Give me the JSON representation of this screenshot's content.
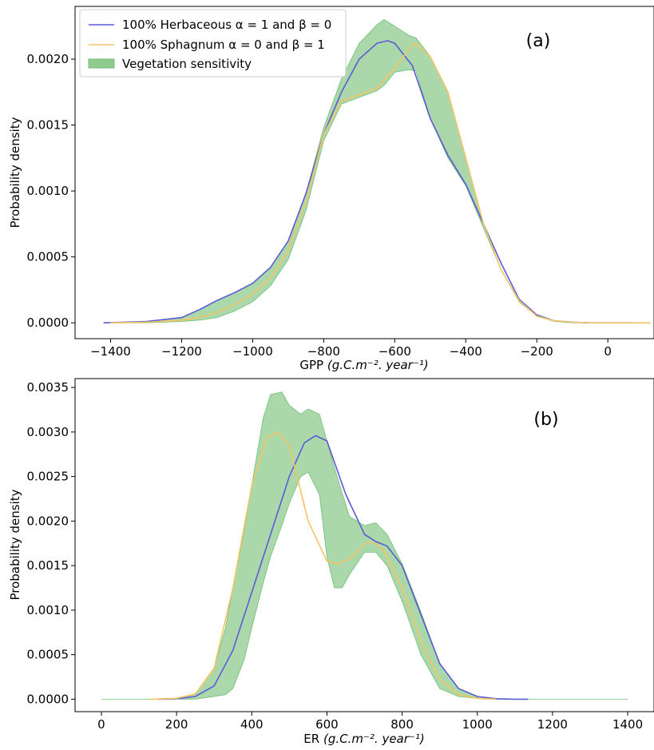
{
  "colors": {
    "herbaceous": "#5b5bd6",
    "sphagnum": "#f5c463",
    "band_fill": "#8fcb8f",
    "band_edge": "#6fbf73"
  },
  "legend": {
    "herbaceous": "100% Herbaceous α = 1 and β = 0",
    "sphagnum": "100% Sphagnum α = 0 and β = 1",
    "band": "Vegetation sensitivity",
    "placement": "top-left"
  },
  "chart_data": [
    {
      "type": "line",
      "panel_label": "(a)",
      "xlabel": "GPP",
      "xlabel_units": "(g.C.m⁻². year⁻¹)",
      "ylabel": "Probability density",
      "xlim": [
        -1500,
        130
      ],
      "ylim": [
        -0.00012,
        0.0024
      ],
      "xticks": [
        -1400,
        -1200,
        -1000,
        -800,
        -600,
        -400,
        -200,
        0
      ],
      "yticks": [
        0.0,
        0.0005,
        0.001,
        0.0015,
        0.002
      ],
      "ytick_labels": [
        "0.0000",
        "0.0005",
        "0.0010",
        "0.0015",
        "0.0020"
      ],
      "grid": false,
      "series": [
        {
          "name": "100% Herbaceous α = 1 and β = 0",
          "x": [
            -1420,
            -1300,
            -1200,
            -1150,
            -1100,
            -1050,
            -1000,
            -950,
            -900,
            -850,
            -800,
            -750,
            -700,
            -650,
            -620,
            -600,
            -550,
            -500,
            -450,
            -400,
            -350,
            -300,
            -250,
            -200,
            -150,
            -100,
            -50,
            0,
            70
          ],
          "y": [
            0.0,
            1e-05,
            4e-05,
            0.0001,
            0.00017,
            0.00023,
            0.0003,
            0.00042,
            0.00062,
            0.00098,
            0.00143,
            0.00175,
            0.002,
            0.00212,
            0.00214,
            0.00212,
            0.00195,
            0.00155,
            0.00127,
            0.00105,
            0.00075,
            0.00045,
            0.00018,
            6e-05,
            1.5e-05,
            5e-06,
            0.0,
            0.0,
            0.0
          ]
        },
        {
          "name": "100% Sphagnum α = 0 and β = 1",
          "x": [
            -1400,
            -1300,
            -1200,
            -1150,
            -1100,
            -1050,
            -1000,
            -950,
            -900,
            -850,
            -800,
            -750,
            -700,
            -650,
            -600,
            -550,
            -540,
            -500,
            -450,
            -400,
            -350,
            -300,
            -250,
            -200,
            -150,
            -100,
            -50,
            0,
            70,
            120
          ],
          "y": [
            0.0,
            5e-06,
            2e-05,
            4e-05,
            8e-05,
            0.00014,
            0.00022,
            0.00034,
            0.00055,
            0.00092,
            0.00143,
            0.00168,
            0.00173,
            0.00178,
            0.00193,
            0.00211,
            0.00212,
            0.00202,
            0.00175,
            0.00125,
            0.00075,
            0.0004,
            0.00017,
            5e-05,
            1.5e-05,
            5e-06,
            0.0,
            0.0,
            0.0,
            0.0
          ]
        }
      ],
      "band": {
        "name": "Vegetation sensitivity",
        "x": [
          -1400,
          -1300,
          -1200,
          -1150,
          -1100,
          -1050,
          -1000,
          -950,
          -900,
          -850,
          -800,
          -750,
          -700,
          -650,
          -630,
          -600,
          -560,
          -540,
          -500,
          -450,
          -400,
          -350,
          -300,
          -250,
          -200,
          -150,
          -100,
          -50,
          0,
          70,
          120
        ],
        "upper": [
          0.0,
          1e-05,
          4e-05,
          0.0001,
          0.00017,
          0.00023,
          0.0003,
          0.00042,
          0.00062,
          0.00098,
          0.00148,
          0.00185,
          0.00212,
          0.00226,
          0.0023,
          0.00225,
          0.00218,
          0.00216,
          0.00202,
          0.00175,
          0.00125,
          0.00075,
          0.0004,
          0.00017,
          5e-05,
          1.5e-05,
          5e-06,
          0.0,
          0.0,
          0.0,
          0.0
        ],
        "lower": [
          0.0,
          0.0,
          1e-05,
          2e-05,
          4e-05,
          9e-05,
          0.00016,
          0.00028,
          0.00048,
          0.00085,
          0.00138,
          0.00166,
          0.00171,
          0.00176,
          0.0018,
          0.0019,
          0.00192,
          0.00191,
          0.00155,
          0.00125,
          0.00104,
          0.00072,
          0.0004,
          0.00016,
          5e-05,
          1e-05,
          0.0,
          0.0,
          0.0,
          0.0,
          0.0
        ]
      }
    },
    {
      "type": "line",
      "panel_label": "(b)",
      "xlabel": "ER",
      "xlabel_units": "(g.C.m⁻². year⁻¹)",
      "ylabel": "Probability density",
      "xlim": [
        -70,
        1470
      ],
      "ylim": [
        -0.00014,
        0.0036
      ],
      "xticks": [
        0,
        200,
        400,
        600,
        800,
        1000,
        1200,
        1400
      ],
      "yticks": [
        0.0,
        0.0005,
        0.001,
        0.0015,
        0.002,
        0.0025,
        0.003,
        0.0035
      ],
      "ytick_labels": [
        "0.0000",
        "0.0005",
        "0.0010",
        "0.0015",
        "0.0020",
        "0.0025",
        "0.0030",
        "0.0035"
      ],
      "grid": false,
      "series": [
        {
          "name": "100% Herbaceous α = 1 and β = 0",
          "x": [
            150,
            200,
            250,
            300,
            350,
            400,
            450,
            500,
            540,
            570,
            600,
            650,
            700,
            730,
            760,
            800,
            850,
            900,
            950,
            1000,
            1050,
            1100,
            1135
          ],
          "y": [
            0.0,
            5e-06,
            3e-05,
            0.00015,
            0.00055,
            0.0012,
            0.00185,
            0.0025,
            0.00288,
            0.00296,
            0.0029,
            0.0023,
            0.00185,
            0.00177,
            0.00172,
            0.0015,
            0.00095,
            0.0004,
            0.00012,
            3e-05,
            5e-06,
            0.0,
            0.0
          ]
        },
        {
          "name": "100% Sphagnum α = 0 and β = 1",
          "x": [
            130,
            200,
            250,
            300,
            350,
            400,
            440,
            470,
            500,
            550,
            600,
            630,
            660,
            700,
            720,
            750,
            800,
            850,
            900,
            950,
            1000,
            1050
          ],
          "y": [
            0.0,
            1e-05,
            6e-05,
            0.00035,
            0.00125,
            0.0024,
            0.00293,
            0.003,
            0.00285,
            0.002,
            0.00155,
            0.00152,
            0.00158,
            0.00174,
            0.00177,
            0.00168,
            0.00125,
            0.00065,
            0.00022,
            5e-05,
            1e-05,
            0.0
          ]
        }
      ],
      "band": {
        "name": "Vegetation sensitivity",
        "x": [
          0,
          100,
          150,
          200,
          250,
          300,
          330,
          350,
          380,
          400,
          430,
          450,
          480,
          500,
          530,
          550,
          580,
          600,
          620,
          640,
          660,
          700,
          730,
          760,
          800,
          850,
          900,
          950,
          1000,
          1050,
          1100,
          1200,
          1300,
          1400
        ],
        "upper": [
          0.0,
          0.0,
          0.0,
          1e-05,
          6e-05,
          0.00035,
          0.0008,
          0.00125,
          0.0019,
          0.0024,
          0.00315,
          0.00342,
          0.00345,
          0.0033,
          0.0032,
          0.00326,
          0.0032,
          0.0029,
          0.0026,
          0.00232,
          0.00205,
          0.00195,
          0.00198,
          0.00185,
          0.00152,
          0.00098,
          0.0004,
          0.00012,
          3e-05,
          5e-06,
          0.0,
          0.0,
          0.0,
          0.0
        ],
        "lower": [
          0.0,
          0.0,
          0.0,
          0.0,
          0.0,
          3e-05,
          5e-05,
          0.00012,
          0.00045,
          0.0008,
          0.0013,
          0.0016,
          0.00195,
          0.0022,
          0.0025,
          0.00255,
          0.0023,
          0.0016,
          0.00125,
          0.00125,
          0.0014,
          0.00165,
          0.00165,
          0.0015,
          0.0011,
          0.0005,
          0.00012,
          3e-05,
          1e-05,
          0.0,
          0.0,
          0.0,
          0.0,
          0.0
        ]
      }
    }
  ]
}
